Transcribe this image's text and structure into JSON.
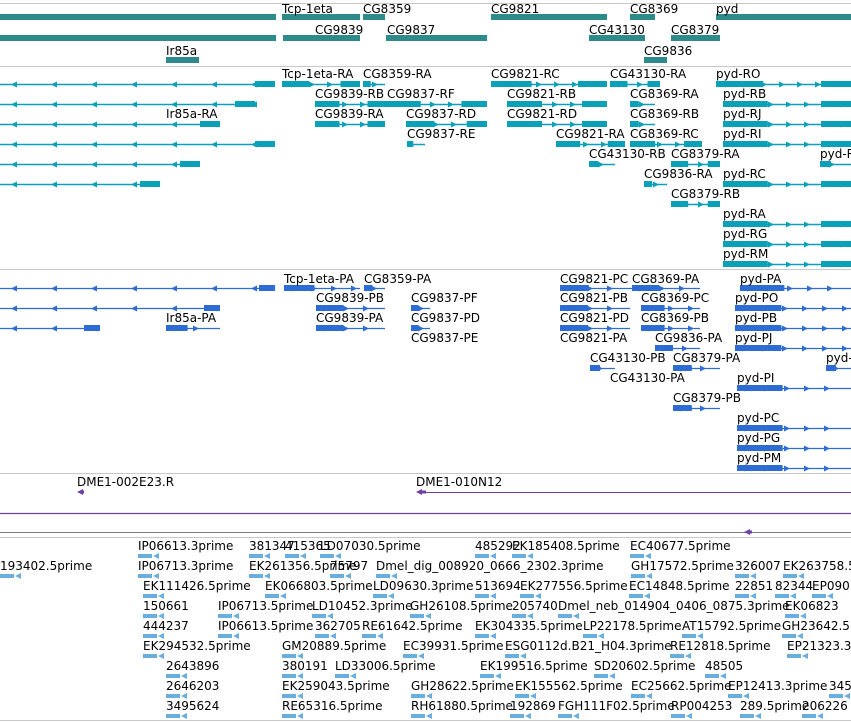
{
  "colors": {
    "gene": "#2e8b8b",
    "mrna_cds": "#0aa0b8",
    "protein": "#2d6cd4",
    "est": "#6f3fa8",
    "cdna": "#6aaee0",
    "track_line": "#c8c8c8",
    "track_line_dark": "#808080"
  },
  "tracks": [
    {
      "id": "genes",
      "name": "track-genes",
      "features": [
        {
          "label": "Tcp-1eta"
        },
        {
          "label": "CG8359"
        },
        {
          "label": "CG9821"
        },
        {
          "label": "CG8369"
        },
        {
          "label": "pyd"
        },
        {
          "label": "CG9839"
        },
        {
          "label": "CG9837"
        },
        {
          "label": "CG43130"
        },
        {
          "label": "CG8379"
        },
        {
          "label": "Ir85a"
        },
        {
          "label": "CG9836"
        }
      ]
    },
    {
      "id": "transcripts",
      "name": "track-transcripts",
      "features": [
        {
          "label": "Tcp-1eta-RA"
        },
        {
          "label": "CG8359-RA"
        },
        {
          "label": "CG9821-RC"
        },
        {
          "label": "CG43130-RA"
        },
        {
          "label": "pyd-RO"
        },
        {
          "label": "CG9839-RB"
        },
        {
          "label": "CG9837-RF"
        },
        {
          "label": "CG9821-RB"
        },
        {
          "label": "CG8369-RA"
        },
        {
          "label": "pyd-RB"
        },
        {
          "label": "Ir85a-RA"
        },
        {
          "label": "CG9839-RA"
        },
        {
          "label": "CG9837-RD"
        },
        {
          "label": "CG9821-RD"
        },
        {
          "label": "CG8369-RB"
        },
        {
          "label": "pyd-RJ"
        },
        {
          "label": "CG9837-RE"
        },
        {
          "label": "CG9821-RA"
        },
        {
          "label": "CG8369-RC"
        },
        {
          "label": "pyd-RI"
        },
        {
          "label": "CG43130-RB"
        },
        {
          "label": "CG8379-RA"
        },
        {
          "label": "pyd-R"
        },
        {
          "label": "CG9836-RA"
        },
        {
          "label": "pyd-RC"
        },
        {
          "label": "CG8379-RB"
        },
        {
          "label": "pyd-RA"
        },
        {
          "label": "pyd-RG"
        },
        {
          "label": "pyd-RM"
        }
      ]
    },
    {
      "id": "proteins",
      "name": "track-proteins",
      "features": [
        {
          "label": "Tcp-1eta-PA"
        },
        {
          "label": "CG8359-PA"
        },
        {
          "label": "CG9821-PC"
        },
        {
          "label": "CG8369-PA"
        },
        {
          "label": "pyd-PA"
        },
        {
          "label": "CG9839-PB"
        },
        {
          "label": "CG9837-PF"
        },
        {
          "label": "CG9821-PB"
        },
        {
          "label": "CG8369-PC"
        },
        {
          "label": "pyd-PO"
        },
        {
          "label": "Ir85a-PA"
        },
        {
          "label": "CG9839-PA"
        },
        {
          "label": "CG9837-PD"
        },
        {
          "label": "CG9821-PD"
        },
        {
          "label": "CG8369-PB"
        },
        {
          "label": "pyd-PB"
        },
        {
          "label": "CG9837-PE"
        },
        {
          "label": "CG9821-PA"
        },
        {
          "label": "CG9836-PA"
        },
        {
          "label": "pyd-PJ"
        },
        {
          "label": "CG43130-PB"
        },
        {
          "label": "CG8379-PA"
        },
        {
          "label": "pyd-"
        },
        {
          "label": "CG43130-PA"
        },
        {
          "label": "pyd-PI"
        },
        {
          "label": "CG8379-PB"
        },
        {
          "label": "pyd-PC"
        },
        {
          "label": "pyd-PG"
        },
        {
          "label": "pyd-PM"
        }
      ]
    },
    {
      "id": "est",
      "name": "track-est-clones",
      "features": [
        {
          "label": "DME1-002E23.R"
        },
        {
          "label": "DME1-010N12"
        }
      ]
    },
    {
      "id": "cdna",
      "name": "track-cdna-reads",
      "features": [
        {
          "label": "IP06613.3prime"
        },
        {
          "label": "381347"
        },
        {
          "label": "415365"
        },
        {
          "label": "LD07030.5prime"
        },
        {
          "label": "485292"
        },
        {
          "label": "EK185408.5prime"
        },
        {
          "label": "EC40677.5prime"
        },
        {
          "label": "193402.5prime"
        },
        {
          "label": "IP06713.3prime"
        },
        {
          "label": "EK261356.5prime"
        },
        {
          "label": "75797"
        },
        {
          "label": "Dmel_dig_008920_0666_2302.3prime"
        },
        {
          "label": "GH17572.5prime"
        },
        {
          "label": "326007"
        },
        {
          "label": "EK263758.5"
        },
        {
          "label": "EK111426.5prime"
        },
        {
          "label": "EK066803.5prime"
        },
        {
          "label": "LD09630.3prime"
        },
        {
          "label": "513694"
        },
        {
          "label": "EK277556.5prime"
        },
        {
          "label": "EC14848.5prime"
        },
        {
          "label": "22851"
        },
        {
          "label": "82344"
        },
        {
          "label": "EP090"
        },
        {
          "label": "150661"
        },
        {
          "label": "IP06713.5prime"
        },
        {
          "label": "LD10452.3prime"
        },
        {
          "label": "GH26108.5prime"
        },
        {
          "label": "205740"
        },
        {
          "label": "Dmel_neb_014904_0406_0875.3prime"
        },
        {
          "label": "EK06823"
        },
        {
          "label": "444237"
        },
        {
          "label": "IP06613.5prime"
        },
        {
          "label": "362705"
        },
        {
          "label": "RE61642.5prime"
        },
        {
          "label": "EK304335.5prime"
        },
        {
          "label": "LP22178.5prime"
        },
        {
          "label": "AT15792.5prime"
        },
        {
          "label": "GH23642.5"
        },
        {
          "label": "EK294532.5prime"
        },
        {
          "label": "GM20889.5prime"
        },
        {
          "label": "EC39931.5prime"
        },
        {
          "label": "ESG0112d.B21_H04.3prime"
        },
        {
          "label": "RE12818.5prime"
        },
        {
          "label": "EP21323.3"
        },
        {
          "label": "2643896"
        },
        {
          "label": "380191"
        },
        {
          "label": "LD33006.5prime"
        },
        {
          "label": "EK199516.5prime"
        },
        {
          "label": "SD20602.5prime"
        },
        {
          "label": "48505"
        },
        {
          "label": "2646203"
        },
        {
          "label": "EK259043.5prime"
        },
        {
          "label": "GH28622.5prime"
        },
        {
          "label": "EK155562.5prime"
        },
        {
          "label": "EC25662.5prime"
        },
        {
          "label": "EP12413.3prime"
        },
        {
          "label": "345"
        },
        {
          "label": "3495624"
        },
        {
          "label": "RE65316.5prime"
        },
        {
          "label": "RH61880.5prime"
        },
        {
          "label": "192869"
        },
        {
          "label": "FGH111F02.5prime"
        },
        {
          "label": "RP004253"
        },
        {
          "label": "289.5prime"
        },
        {
          "label": "206226"
        }
      ]
    }
  ]
}
